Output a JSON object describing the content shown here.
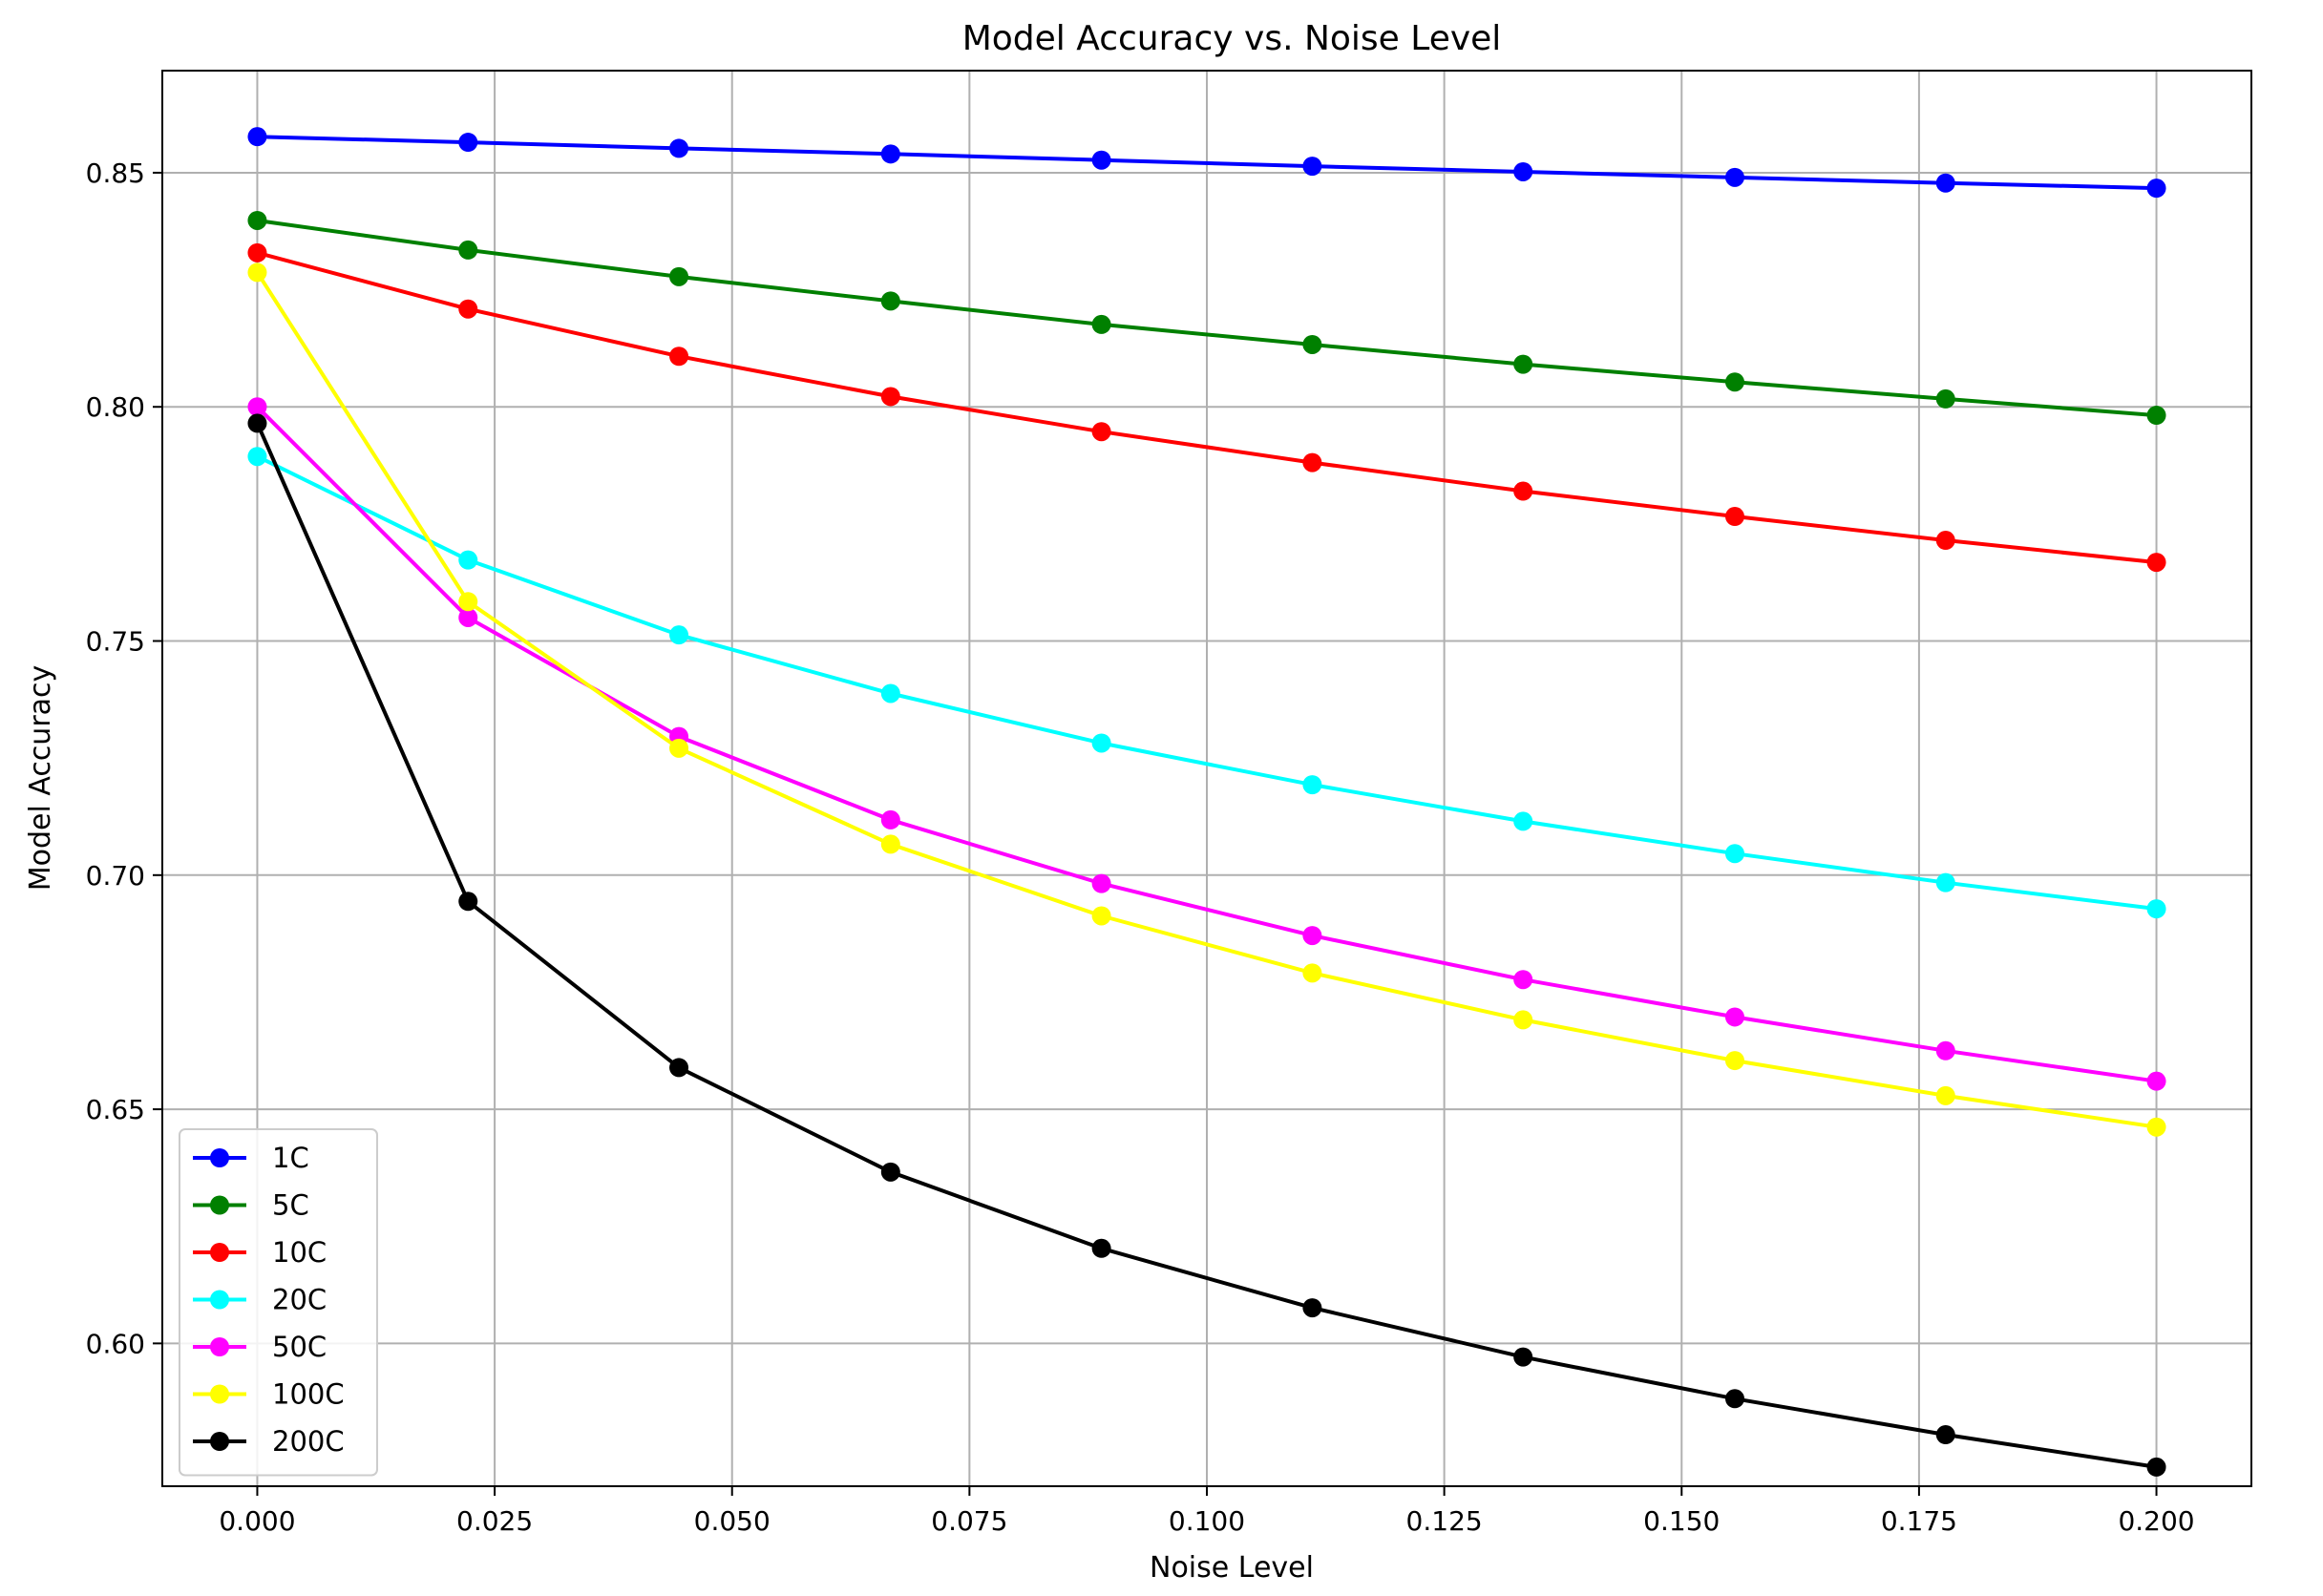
{
  "chart_data": {
    "type": "line",
    "title": "Model Accuracy vs. Noise Level",
    "xlabel": "Noise Level",
    "ylabel": "Model Accuracy",
    "xlim": [
      -0.01,
      0.21
    ],
    "ylim": [
      0.5695,
      0.8718
    ],
    "xticks": [
      0.0,
      0.025,
      0.05,
      0.075,
      0.1,
      0.125,
      0.15,
      0.175,
      0.2
    ],
    "xtick_labels": [
      "0.000",
      "0.025",
      "0.050",
      "0.075",
      "0.100",
      "0.125",
      "0.150",
      "0.175",
      "0.200"
    ],
    "yticks": [
      0.6,
      0.65,
      0.7,
      0.75,
      0.8,
      0.85
    ],
    "ytick_labels": [
      "0.60",
      "0.65",
      "0.70",
      "0.75",
      "0.80",
      "0.85"
    ],
    "grid": true,
    "legend_position": "lower-left",
    "x": [
      0.0,
      0.0222,
      0.0444,
      0.0667,
      0.0889,
      0.1111,
      0.1333,
      0.1556,
      0.1778,
      0.2
    ],
    "series": [
      {
        "name": "1C",
        "color": "#0000ff",
        "values": [
          0.8577,
          0.8565,
          0.8552,
          0.854,
          0.8527,
          0.8514,
          0.8502,
          0.849,
          0.8478,
          0.8467
        ]
      },
      {
        "name": "5C",
        "color": "#008000",
        "values": [
          0.8398,
          0.8335,
          0.8278,
          0.8226,
          0.8176,
          0.8133,
          0.8091,
          0.8053,
          0.8017,
          0.7982
        ]
      },
      {
        "name": "10C",
        "color": "#ff0000",
        "values": [
          0.8329,
          0.8209,
          0.8108,
          0.8022,
          0.7947,
          0.7881,
          0.782,
          0.7766,
          0.7715,
          0.7668
        ]
      },
      {
        "name": "20C",
        "color": "#00ffff",
        "values": [
          0.7894,
          0.7673,
          0.7513,
          0.7388,
          0.7282,
          0.7193,
          0.7115,
          0.7046,
          0.6984,
          0.6928
        ]
      },
      {
        "name": "50C",
        "color": "#ff00ff",
        "values": [
          0.8,
          0.755,
          0.7296,
          0.7118,
          0.6982,
          0.6871,
          0.6777,
          0.6697,
          0.6625,
          0.656
        ]
      },
      {
        "name": "100C",
        "color": "#ffff00",
        "values": [
          0.8287,
          0.7584,
          0.7271,
          0.7066,
          0.6913,
          0.6791,
          0.6691,
          0.6604,
          0.6529,
          0.6462
        ]
      },
      {
        "name": "200C",
        "color": "#000000",
        "values": [
          0.7965,
          0.6944,
          0.6589,
          0.6366,
          0.6203,
          0.6076,
          0.5971,
          0.5882,
          0.5805,
          0.5736
        ]
      }
    ]
  }
}
